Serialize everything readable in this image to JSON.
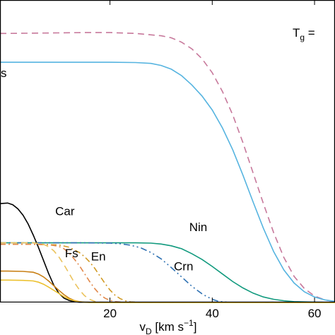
{
  "chart_data": {
    "type": "line",
    "xlabel": {
      "main": "v",
      "sub": "D",
      "unit_pre": " [km s",
      "sup": "−1",
      "unit_post": "]"
    },
    "ylabel": "",
    "title": "",
    "xlim": [
      -1.5,
      64
    ],
    "ylim": [
      0,
      1.04
    ],
    "xticks": [
      20,
      40,
      60
    ],
    "xtick_labels": [
      "20",
      "40",
      "60"
    ],
    "annotation": {
      "main": "T",
      "sub": "g",
      "rest": " ="
    },
    "grid": false,
    "legend": "none",
    "series": [
      {
        "label": "",
        "color": "#c7789b",
        "dash": "dashed",
        "points": [
          [
            -1.5,
            0.925
          ],
          [
            0,
            0.925
          ],
          [
            5,
            0.926
          ],
          [
            10,
            0.927
          ],
          [
            15,
            0.928
          ],
          [
            20,
            0.928
          ],
          [
            25,
            0.925
          ],
          [
            30,
            0.917
          ],
          [
            32,
            0.91
          ],
          [
            34,
            0.895
          ],
          [
            36,
            0.872
          ],
          [
            38,
            0.838
          ],
          [
            40,
            0.79
          ],
          [
            42,
            0.725
          ],
          [
            44,
            0.645
          ],
          [
            46,
            0.55
          ],
          [
            48,
            0.445
          ],
          [
            50,
            0.34
          ],
          [
            52,
            0.24
          ],
          [
            54,
            0.155
          ],
          [
            56,
            0.09
          ],
          [
            58,
            0.048
          ],
          [
            60,
            0.022
          ],
          [
            62,
            0.009
          ],
          [
            64,
            0.003
          ]
        ]
      },
      {
        "label": "s",
        "color": "#56b4e0",
        "dash": "solid",
        "points": [
          [
            -1.5,
            0.826
          ],
          [
            0,
            0.826
          ],
          [
            5,
            0.826
          ],
          [
            10,
            0.826
          ],
          [
            15,
            0.826
          ],
          [
            20,
            0.826
          ],
          [
            25,
            0.825
          ],
          [
            28,
            0.822
          ],
          [
            30,
            0.815
          ],
          [
            32,
            0.802
          ],
          [
            34,
            0.78
          ],
          [
            36,
            0.748
          ],
          [
            38,
            0.71
          ],
          [
            40,
            0.662
          ],
          [
            42,
            0.6
          ],
          [
            44,
            0.525
          ],
          [
            46,
            0.438
          ],
          [
            48,
            0.345
          ],
          [
            50,
            0.255
          ],
          [
            52,
            0.175
          ],
          [
            54,
            0.112
          ],
          [
            56,
            0.067
          ],
          [
            58,
            0.037
          ],
          [
            60,
            0.019
          ],
          [
            62,
            0.009
          ],
          [
            64,
            0.004
          ]
        ]
      },
      {
        "label": "Nin",
        "color": "#119a7e",
        "dash": "solid",
        "points": [
          [
            -1.5,
            0.205
          ],
          [
            0,
            0.205
          ],
          [
            10,
            0.205
          ],
          [
            20,
            0.205
          ],
          [
            25,
            0.205
          ],
          [
            28,
            0.204
          ],
          [
            30,
            0.201
          ],
          [
            32,
            0.195
          ],
          [
            34,
            0.185
          ],
          [
            36,
            0.168
          ],
          [
            38,
            0.148
          ],
          [
            40,
            0.124
          ],
          [
            42,
            0.098
          ],
          [
            44,
            0.072
          ],
          [
            46,
            0.05
          ],
          [
            48,
            0.032
          ],
          [
            50,
            0.019
          ],
          [
            52,
            0.011
          ],
          [
            54,
            0.006
          ],
          [
            56,
            0.003
          ],
          [
            60,
            0.001
          ],
          [
            64,
            0
          ]
        ]
      },
      {
        "label": "Crn",
        "color": "#2f72b3",
        "dash": "dashdotdot",
        "points": [
          [
            -1.5,
            0.205
          ],
          [
            0,
            0.205
          ],
          [
            10,
            0.205
          ],
          [
            15,
            0.205
          ],
          [
            20,
            0.204
          ],
          [
            22,
            0.202
          ],
          [
            24,
            0.197
          ],
          [
            26,
            0.188
          ],
          [
            28,
            0.172
          ],
          [
            30,
            0.15
          ],
          [
            32,
            0.12
          ],
          [
            34,
            0.088
          ],
          [
            36,
            0.056
          ],
          [
            38,
            0.03
          ],
          [
            39,
            0.02
          ],
          [
            40,
            0.011
          ],
          [
            41,
            0.005
          ],
          [
            42,
            0.002
          ],
          [
            44,
            0
          ],
          [
            64,
            0
          ]
        ]
      },
      {
        "label": "Car",
        "color": "#000000",
        "dash": "solid",
        "points": [
          [
            -1.5,
            0.34
          ],
          [
            0,
            0.342
          ],
          [
            1,
            0.336
          ],
          [
            2,
            0.322
          ],
          [
            3,
            0.3
          ],
          [
            4,
            0.27
          ],
          [
            5,
            0.232
          ],
          [
            6,
            0.19
          ],
          [
            7,
            0.145
          ],
          [
            8,
            0.1
          ],
          [
            9,
            0.06
          ],
          [
            10,
            0.032
          ],
          [
            11,
            0.015
          ],
          [
            12,
            0.007
          ],
          [
            13,
            0.003
          ],
          [
            14,
            0.001
          ],
          [
            16,
            0
          ],
          [
            64,
            0
          ]
        ]
      },
      {
        "label": "En",
        "color": "#d19a24",
        "dash": "dashdot",
        "points": [
          [
            -1.5,
            0.2
          ],
          [
            0,
            0.2
          ],
          [
            5,
            0.2
          ],
          [
            10,
            0.198
          ],
          [
            12,
            0.19
          ],
          [
            14,
            0.172
          ],
          [
            15,
            0.158
          ],
          [
            16,
            0.14
          ],
          [
            17,
            0.118
          ],
          [
            18,
            0.092
          ],
          [
            19,
            0.066
          ],
          [
            20,
            0.043
          ],
          [
            21,
            0.025
          ],
          [
            22,
            0.013
          ],
          [
            23,
            0.006
          ],
          [
            24,
            0.002
          ],
          [
            26,
            0
          ],
          [
            64,
            0
          ]
        ]
      },
      {
        "label": "",
        "color": "#e2884a",
        "dash": "dashdot",
        "points": [
          [
            -1.5,
            0.2
          ],
          [
            0,
            0.2
          ],
          [
            5,
            0.2
          ],
          [
            8,
            0.199
          ],
          [
            10,
            0.193
          ],
          [
            11,
            0.185
          ],
          [
            12,
            0.17
          ],
          [
            13,
            0.15
          ],
          [
            14,
            0.127
          ],
          [
            15,
            0.1
          ],
          [
            16,
            0.073
          ],
          [
            17,
            0.048
          ],
          [
            18,
            0.028
          ],
          [
            19,
            0.015
          ],
          [
            20,
            0.007
          ],
          [
            21,
            0.003
          ],
          [
            23,
            0
          ],
          [
            64,
            0
          ]
        ]
      },
      {
        "label": "Fs",
        "color": "#ebc35d",
        "dash": "dashed",
        "points": [
          [
            -1.5,
            0.205
          ],
          [
            0,
            0.205
          ],
          [
            5,
            0.205
          ],
          [
            7,
            0.2
          ],
          [
            8,
            0.192
          ],
          [
            9,
            0.178
          ],
          [
            10,
            0.157
          ],
          [
            11,
            0.13
          ],
          [
            12,
            0.1
          ],
          [
            13,
            0.07
          ],
          [
            14,
            0.044
          ],
          [
            15,
            0.024
          ],
          [
            16,
            0.011
          ],
          [
            17,
            0.004
          ],
          [
            18,
            0.001
          ],
          [
            20,
            0
          ],
          [
            64,
            0
          ]
        ]
      },
      {
        "label": "",
        "color": "#c98016",
        "dash": "solid",
        "points": [
          [
            -1.5,
            0.108
          ],
          [
            0,
            0.108
          ],
          [
            3,
            0.107
          ],
          [
            5,
            0.104
          ],
          [
            6,
            0.098
          ],
          [
            7,
            0.088
          ],
          [
            8,
            0.074
          ],
          [
            9,
            0.058
          ],
          [
            10,
            0.042
          ],
          [
            11,
            0.027
          ],
          [
            12,
            0.015
          ],
          [
            13,
            0.007
          ],
          [
            14,
            0.003
          ],
          [
            15,
            0.001
          ],
          [
            17,
            0
          ],
          [
            64,
            0
          ]
        ]
      },
      {
        "label": "",
        "color": "#ecc12f",
        "dash": "solid",
        "points": [
          [
            -1.5,
            0.077
          ],
          [
            0,
            0.077
          ],
          [
            3,
            0.076
          ],
          [
            5,
            0.074
          ],
          [
            6,
            0.07
          ],
          [
            7,
            0.063
          ],
          [
            8,
            0.053
          ],
          [
            9,
            0.042
          ],
          [
            10,
            0.031
          ],
          [
            11,
            0.02
          ],
          [
            12,
            0.012
          ],
          [
            13,
            0.006
          ],
          [
            14,
            0.002
          ],
          [
            15,
            0.001
          ],
          [
            17,
            0
          ],
          [
            64,
            0
          ]
        ]
      }
    ]
  }
}
